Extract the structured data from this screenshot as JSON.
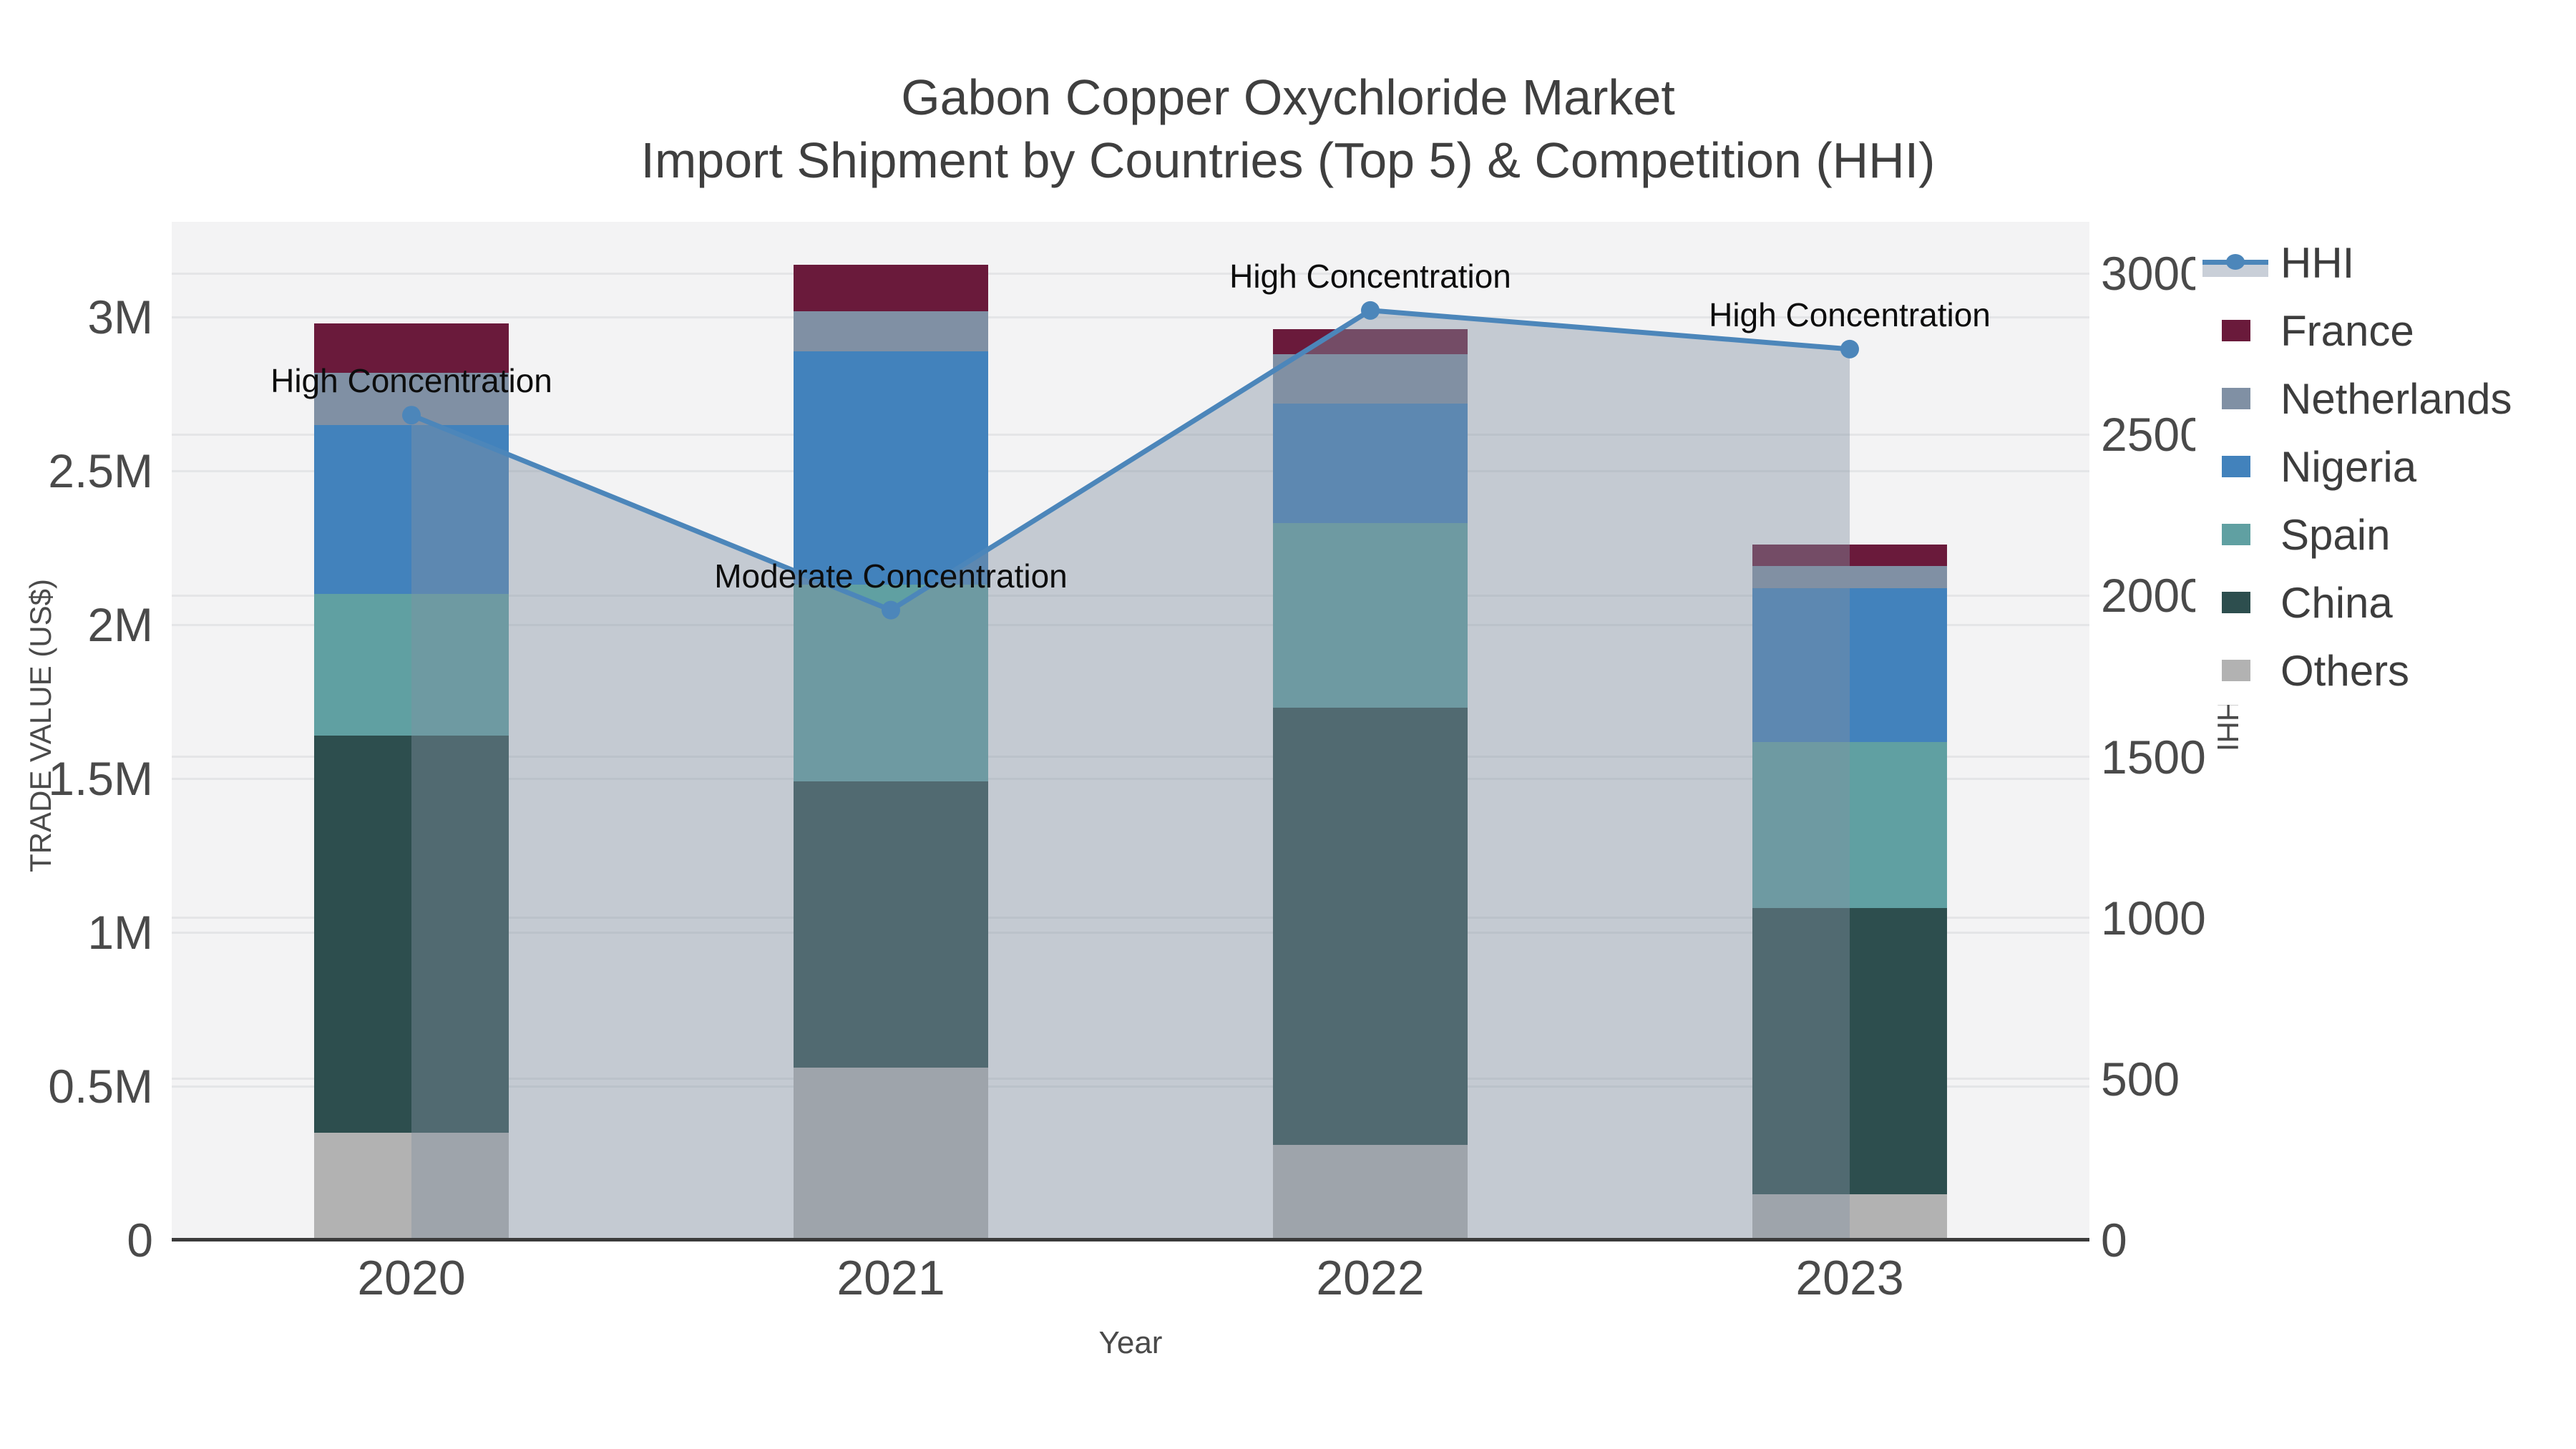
{
  "title": {
    "line1": "Gabon Copper Oxychloride Market",
    "line2": "Import Shipment by Countries (Top 5) & Competition (HHI)"
  },
  "axes": {
    "x": {
      "title": "Year",
      "categories": [
        "2020",
        "2021",
        "2022",
        "2023"
      ]
    },
    "y_left": {
      "title": "TRADE VALUE (US$)",
      "tick_labels": [
        "0",
        "0.5M",
        "1M",
        "1.5M",
        "2M",
        "2.5M",
        "3M"
      ],
      "tick_values": [
        0,
        500000,
        1000000,
        1500000,
        2000000,
        2500000,
        3000000
      ],
      "range": [
        0,
        3310000
      ]
    },
    "y_right": {
      "title": "HHI",
      "tick_labels": [
        "0",
        "500",
        "1000",
        "1500",
        "2000",
        "2500",
        "3000"
      ],
      "tick_values": [
        0,
        500,
        1000,
        1500,
        2000,
        2500,
        3000
      ],
      "range": [
        0,
        3160
      ]
    }
  },
  "legend": {
    "items": [
      {
        "label": "HHI",
        "type": "line",
        "color": "#4c86ba",
        "fill": "#c9cfd8"
      },
      {
        "label": "France",
        "type": "square",
        "color": "#6a1a3b"
      },
      {
        "label": "Netherlands",
        "type": "square",
        "color": "#8090a4"
      },
      {
        "label": "Nigeria",
        "type": "square",
        "color": "#4282bc"
      },
      {
        "label": "Spain",
        "type": "square",
        "color": "#60a0a2"
      },
      {
        "label": "China",
        "type": "square",
        "color": "#2d4e4e"
      },
      {
        "label": "Others",
        "type": "square",
        "color": "#b2b2b2"
      }
    ]
  },
  "chart_data": {
    "type": "bar",
    "stacked": true,
    "categories": [
      "2020",
      "2021",
      "2022",
      "2023"
    ],
    "series": [
      {
        "name": "Others",
        "color": "#b2b2b2",
        "values": [
          350000,
          560000,
          310000,
          150000
        ]
      },
      {
        "name": "China",
        "color": "#2d4e4e",
        "values": [
          1290000,
          930000,
          1420000,
          930000
        ]
      },
      {
        "name": "Spain",
        "color": "#60a0a2",
        "values": [
          460000,
          640000,
          600000,
          540000
        ]
      },
      {
        "name": "Nigeria",
        "color": "#4282bc",
        "values": [
          550000,
          760000,
          390000,
          500000
        ]
      },
      {
        "name": "Netherlands",
        "color": "#8090a4",
        "values": [
          170000,
          130000,
          160000,
          70000
        ]
      },
      {
        "name": "France",
        "color": "#6a1a3b",
        "values": [
          160000,
          150000,
          80000,
          70000
        ]
      }
    ],
    "line": {
      "name": "HHI",
      "yaxis": "right",
      "color": "#4c86ba",
      "area_fill": "rgba(130,145,162,0.42)",
      "values": [
        2560,
        1955,
        2885,
        2765
      ]
    },
    "annotations": [
      {
        "x": "2020",
        "text": "High Concentration"
      },
      {
        "x": "2021",
        "text": "Moderate Concentration"
      },
      {
        "x": "2022",
        "text": "High Concentration"
      },
      {
        "x": "2023",
        "text": "High Concentration"
      }
    ],
    "xlabel": "Year",
    "ylabel": "TRADE VALUE (US$)",
    "ylabel_right": "HHI",
    "ylim_left": [
      0,
      3310000
    ],
    "ylim_right": [
      0,
      3160
    ],
    "grid": true,
    "legend_position": "right"
  },
  "colors": {
    "plot_bg": "#f3f3f4",
    "figure_bg": "#ffffff",
    "gridline": "#e4e5e7",
    "axis_line": "#3b3b3b",
    "title_text": "#3f3f3f",
    "tick_text": "#4a4a4a",
    "annotation_text": "#0d0d0d"
  }
}
